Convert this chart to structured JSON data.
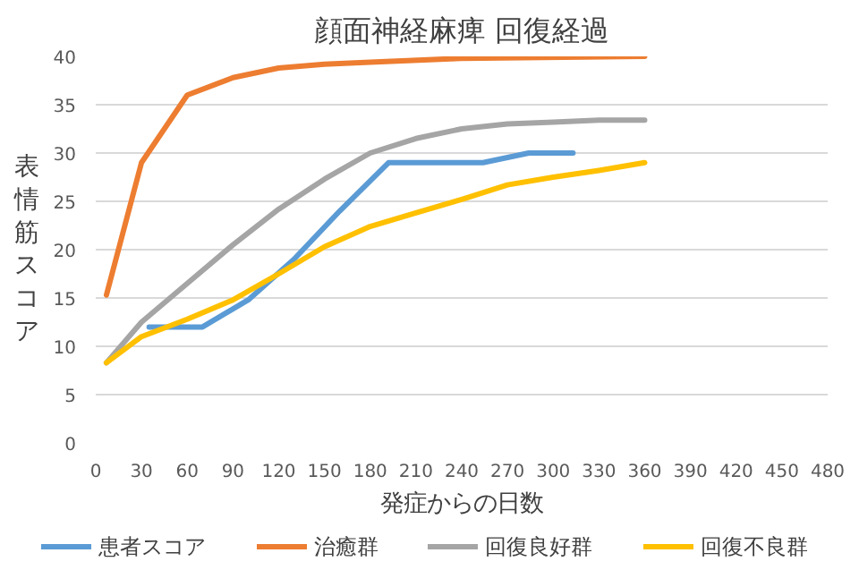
{
  "chart_data": {
    "type": "line",
    "title": "顔面神経麻痺 回復経過",
    "xlabel": "発症からの日数",
    "ylabel": "表情筋スコア",
    "xlim": [
      0,
      480
    ],
    "xticks": [
      0,
      30,
      60,
      90,
      120,
      150,
      180,
      210,
      240,
      270,
      300,
      330,
      360,
      390,
      420,
      450,
      480
    ],
    "ylim": [
      0,
      40
    ],
    "yticks": [
      0,
      5,
      10,
      15,
      20,
      25,
      30,
      35,
      40
    ],
    "grid": "y",
    "legend": "bottom",
    "marker": "none",
    "line_style": "solid",
    "series": [
      {
        "name": "患者スコア",
        "color": "#5b9bd5",
        "x": [
          35,
          70,
          100,
          130,
          160,
          192,
          254,
          284,
          313
        ],
        "values": [
          12,
          12,
          14.8,
          19,
          24,
          29,
          29,
          30,
          30
        ]
      },
      {
        "name": "治癒群",
        "color": "#ed7d31",
        "x": [
          7,
          30,
          60,
          90,
          120,
          150,
          180,
          240,
          360
        ],
        "values": [
          15.3,
          29,
          36,
          37.8,
          38.8,
          39.2,
          39.4,
          39.8,
          40
        ]
      },
      {
        "name": "回復良好群",
        "color": "#a5a5a5",
        "x": [
          7,
          30,
          60,
          90,
          120,
          150,
          180,
          210,
          240,
          270,
          300,
          330,
          360
        ],
        "values": [
          8.3,
          12.5,
          16.5,
          20.5,
          24.2,
          27.3,
          30,
          31.5,
          32.5,
          33,
          33.2,
          33.4,
          33.4
        ]
      },
      {
        "name": "回復不良群",
        "color": "#ffc000",
        "x": [
          7,
          30,
          60,
          90,
          120,
          150,
          180,
          210,
          240,
          270,
          300,
          330,
          360
        ],
        "values": [
          8.3,
          11,
          12.8,
          14.8,
          17.5,
          20.3,
          22.4,
          23.8,
          25.2,
          26.7,
          27.5,
          28.2,
          29
        ]
      }
    ]
  }
}
